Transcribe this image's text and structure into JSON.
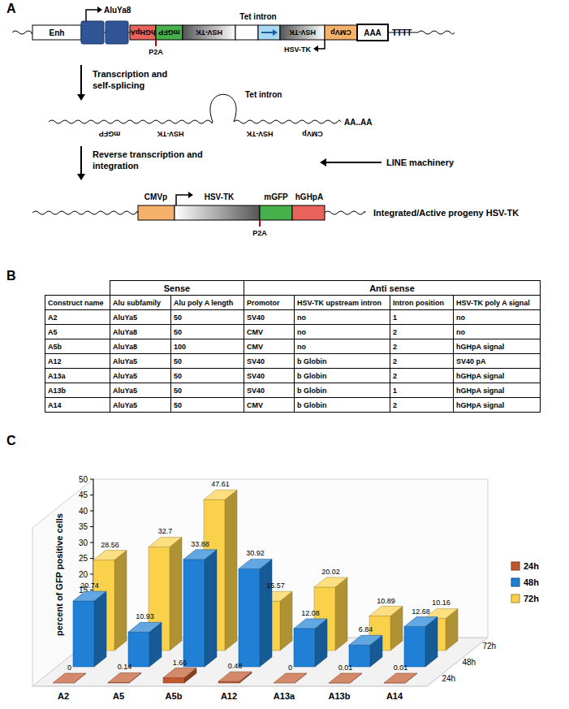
{
  "panel_a": {
    "label": "A",
    "construct": {
      "enh": "Enh",
      "alu": "AluYa8",
      "hgh": "hGHpA",
      "gfp": "mGFP",
      "tk1": "HSV-TK",
      "tk2": "HSV-TK",
      "cmv": "CMVp",
      "intron": "Tet intron",
      "polya": "AAA",
      "tail": "TTTT",
      "p2a": "P2A",
      "tk_arrow": "HSV-TK"
    },
    "step1": [
      "Transcription and",
      "self-splicing"
    ],
    "transcript": {
      "gfp": "mGFP",
      "tk1": "HSV-TK",
      "tk2": "HSV-TK",
      "cmv": "CMVp",
      "intron": "Tet intron",
      "polya": "AA..AA"
    },
    "step2": [
      "Reverse transcription and",
      "integration"
    ],
    "machinery": "LINE machinery",
    "progeny": {
      "cmv": "CMVp",
      "tk": "HSV-TK",
      "gfp": "mGFP",
      "hgh": "hGHpA",
      "p2a": "P2A",
      "caption": "Integrated/Active progeny HSV-TK"
    }
  },
  "panel_b": {
    "label": "B",
    "groups": [
      "Sense",
      "Anti sense"
    ],
    "columns": [
      "Construct name",
      "Alu subfamily",
      "Alu poly A length",
      "Promotor",
      "HSV-TK upstream intron",
      "Intron position",
      "HSV-TK poly A signal"
    ],
    "rows": [
      [
        "A2",
        "AluYa5",
        50,
        "SV40",
        "no",
        1,
        "no"
      ],
      [
        "A5",
        "AluYa8",
        50,
        "CMV",
        "no",
        2,
        "no"
      ],
      [
        "A5b",
        "AluYa8",
        100,
        "CMV",
        "no",
        2,
        "hGHpA signal"
      ],
      [
        "A12",
        "AluYa5",
        50,
        "SV40",
        "b Globin",
        2,
        "SV40 pA"
      ],
      [
        "A13a",
        "AluYa5",
        50,
        "SV40",
        "b Globin",
        2,
        "hGHpA signal"
      ],
      [
        "A13b",
        "AluYa5",
        50,
        "SV40",
        "b Globin",
        1,
        "hGHpA signal"
      ],
      [
        "A14",
        "AluYa5",
        50,
        "CMV",
        "b Globin",
        2,
        "hGHpA signal"
      ]
    ]
  },
  "panel_c": {
    "label": "C"
  },
  "chart_data": {
    "type": "bar",
    "y_label": "percent of GFP positive cells",
    "categories": [
      "A2",
      "A5",
      "A5b",
      "A12",
      "A13a",
      "A13b",
      "A14"
    ],
    "series": [
      {
        "name": "24h",
        "color": "#c0582c",
        "values": [
          0,
          0.14,
          1.66,
          0.48,
          0,
          0.01,
          0.01
        ]
      },
      {
        "name": "48h",
        "color": "#1f80d6",
        "values": [
          20.74,
          10.93,
          33.88,
          30.92,
          12.08,
          6.84,
          12.68
        ]
      },
      {
        "name": "72h",
        "color": "#fad14a",
        "values": [
          28.56,
          32.7,
          47.61,
          15.57,
          20.02,
          10.89,
          10.16
        ]
      }
    ],
    "ylim": [
      0,
      50
    ],
    "yticks": [
      0,
      5,
      10,
      15,
      20,
      25,
      30,
      35,
      40,
      45,
      50
    ],
    "data_labels": true,
    "legend": "right"
  }
}
